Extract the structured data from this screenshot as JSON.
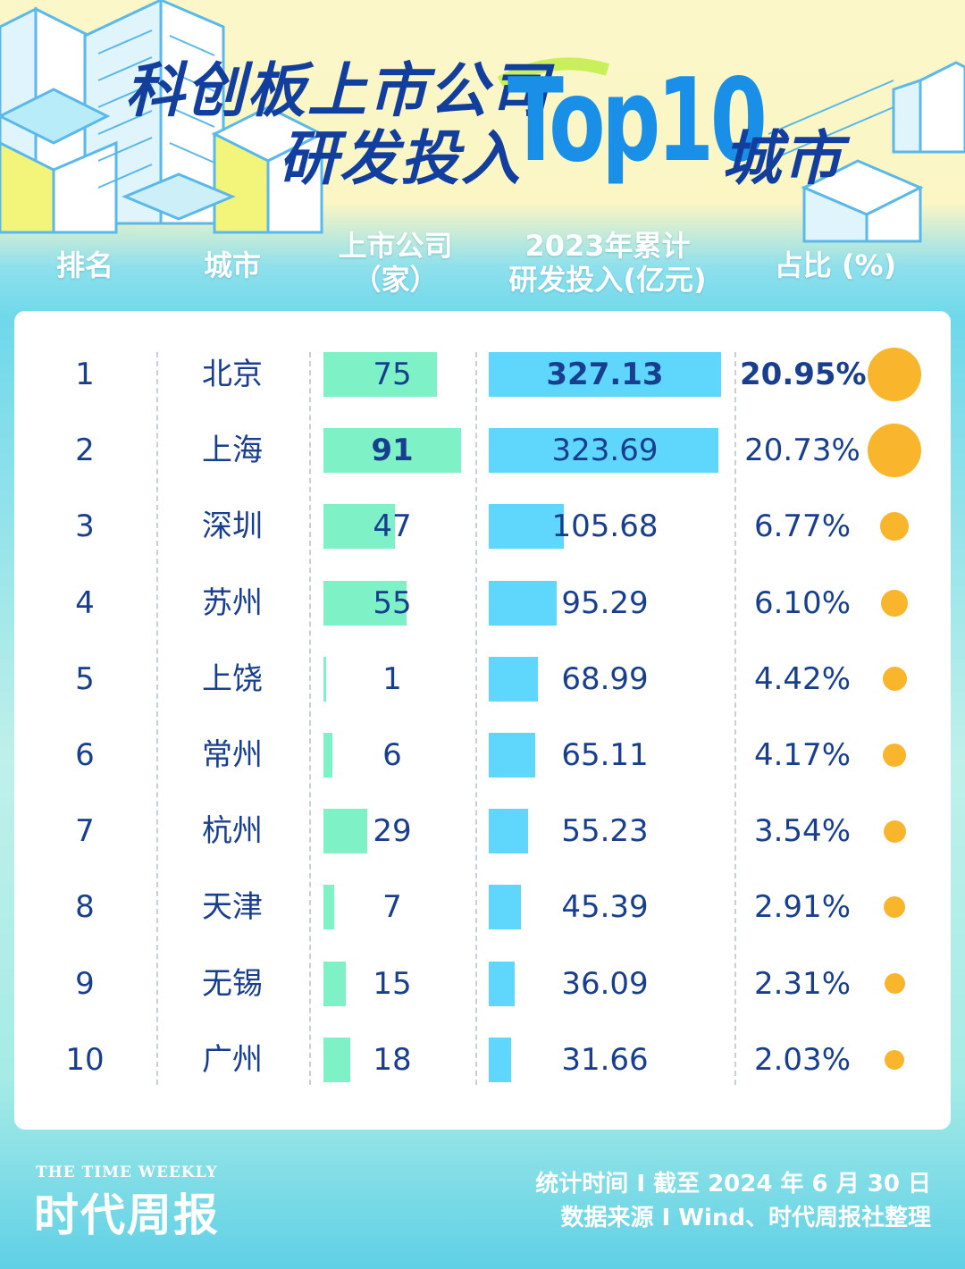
{
  "title": {
    "line1": "科创板上市公司",
    "line2": "研发投入",
    "top": "Top10",
    "line2_end": "城市"
  },
  "headers": {
    "rank": "排名",
    "city": "城市",
    "companies_1": "上市公司",
    "companies_2": "（家）",
    "rd_1": "2023年累计",
    "rd_2": "研发投入(亿元)",
    "pct": "占比 (%)"
  },
  "chart_data": {
    "type": "table",
    "columns": [
      "排名",
      "城市",
      "上市公司（家）",
      "2023年累计研发投入(亿元)",
      "占比 (%)"
    ],
    "rows": [
      {
        "rank": "1",
        "city": "北京",
        "companies": 75,
        "rd": 327.13,
        "rd_label": "327.13",
        "pct": 20.95,
        "pct_label": "20.95%"
      },
      {
        "rank": "2",
        "city": "上海",
        "companies": 91,
        "rd": 323.69,
        "rd_label": "323.69",
        "pct": 20.73,
        "pct_label": "20.73%"
      },
      {
        "rank": "3",
        "city": "深圳",
        "companies": 47,
        "rd": 105.68,
        "rd_label": "105.68",
        "pct": 6.77,
        "pct_label": "6.77%"
      },
      {
        "rank": "4",
        "city": "苏州",
        "companies": 55,
        "rd": 95.29,
        "rd_label": "95.29",
        "pct": 6.1,
        "pct_label": "6.10%"
      },
      {
        "rank": "5",
        "city": "上饶",
        "companies": 1,
        "rd": 68.99,
        "rd_label": "68.99",
        "pct": 4.42,
        "pct_label": "4.42%"
      },
      {
        "rank": "6",
        "city": "常州",
        "companies": 6,
        "rd": 65.11,
        "rd_label": "65.11",
        "pct": 4.17,
        "pct_label": "4.17%"
      },
      {
        "rank": "7",
        "city": "杭州",
        "companies": 29,
        "rd": 55.23,
        "rd_label": "55.23",
        "pct": 3.54,
        "pct_label": "3.54%"
      },
      {
        "rank": "8",
        "city": "天津",
        "companies": 7,
        "rd": 45.39,
        "rd_label": "45.39",
        "pct": 2.91,
        "pct_label": "2.91%"
      },
      {
        "rank": "9",
        "city": "无锡",
        "companies": 15,
        "rd": 36.09,
        "rd_label": "36.09",
        "pct": 2.31,
        "pct_label": "2.31%"
      },
      {
        "rank": "10",
        "city": "广州",
        "companies": 18,
        "rd": 31.66,
        "rd_label": "31.66",
        "pct": 2.03,
        "pct_label": "2.03%"
      }
    ],
    "colors": {
      "companies_bar": "#7ef2c6",
      "rd_bar": "#5fd6fb",
      "pct_dot": "#f9b52b",
      "text": "#183f8f"
    }
  },
  "footer": {
    "logo_en": "THE TIME WEEKLY",
    "logo_cn": "时代周报",
    "stat_time": "统计时间 I 截至 2024 年 6 月 30 日",
    "source": "数据来源 I Wind、时代周报社整理"
  }
}
